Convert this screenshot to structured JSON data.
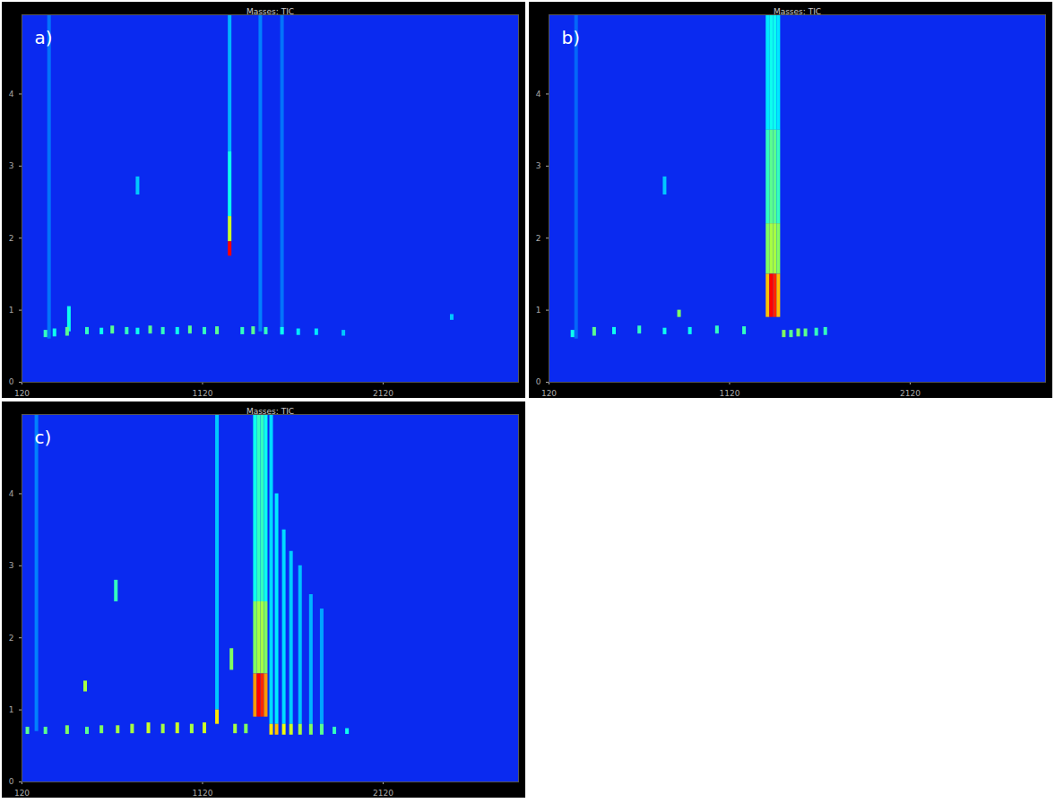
{
  "chart_data": [
    {
      "type": "heatmap",
      "title": "Masses: TIC",
      "panel_label": "a)",
      "xlim": [
        120,
        2870
      ],
      "xticks": [
        120,
        1120,
        2120
      ],
      "ylim": [
        0,
        5.1
      ],
      "yticks": [
        0,
        1,
        2,
        3,
        4
      ],
      "zlim": [
        0,
        1
      ],
      "peaks": [
        {
          "x": 270,
          "y0": 0.6,
          "y1": 5.1,
          "intensity": 0.12
        },
        {
          "x": 1440,
          "y0": 0.7,
          "y1": 5.1,
          "intensity": 0.14
        },
        {
          "x": 1560,
          "y0": 0.65,
          "y1": 5.1,
          "intensity": 0.12
        },
        {
          "x": 1270,
          "y0": 3.2,
          "y1": 5.1,
          "intensity": 0.22
        },
        {
          "x": 1270,
          "y0": 2.3,
          "y1": 3.2,
          "intensity": 0.35
        },
        {
          "x": 1270,
          "y0": 1.95,
          "y1": 2.3,
          "intensity": 0.6
        },
        {
          "x": 1270,
          "y0": 1.75,
          "y1": 1.95,
          "intensity": 1.0
        },
        {
          "x": 760,
          "y0": 2.6,
          "y1": 2.85,
          "intensity": 0.25
        },
        {
          "x": 380,
          "y0": 0.7,
          "y1": 1.05,
          "intensity": 0.35
        },
        {
          "x": 250,
          "y0": 0.62,
          "y1": 0.72,
          "intensity": 0.4
        },
        {
          "x": 300,
          "y0": 0.63,
          "y1": 0.74,
          "intensity": 0.35
        },
        {
          "x": 370,
          "y0": 0.64,
          "y1": 0.76,
          "intensity": 0.45
        },
        {
          "x": 480,
          "y0": 0.66,
          "y1": 0.76,
          "intensity": 0.4
        },
        {
          "x": 560,
          "y0": 0.66,
          "y1": 0.75,
          "intensity": 0.35
        },
        {
          "x": 620,
          "y0": 0.67,
          "y1": 0.78,
          "intensity": 0.45
        },
        {
          "x": 700,
          "y0": 0.66,
          "y1": 0.76,
          "intensity": 0.4
        },
        {
          "x": 760,
          "y0": 0.66,
          "y1": 0.75,
          "intensity": 0.35
        },
        {
          "x": 830,
          "y0": 0.67,
          "y1": 0.78,
          "intensity": 0.45
        },
        {
          "x": 900,
          "y0": 0.66,
          "y1": 0.76,
          "intensity": 0.4
        },
        {
          "x": 980,
          "y0": 0.66,
          "y1": 0.76,
          "intensity": 0.35
        },
        {
          "x": 1050,
          "y0": 0.67,
          "y1": 0.78,
          "intensity": 0.45
        },
        {
          "x": 1130,
          "y0": 0.66,
          "y1": 0.76,
          "intensity": 0.4
        },
        {
          "x": 1200,
          "y0": 0.66,
          "y1": 0.77,
          "intensity": 0.45
        },
        {
          "x": 1340,
          "y0": 0.66,
          "y1": 0.76,
          "intensity": 0.4
        },
        {
          "x": 1400,
          "y0": 0.66,
          "y1": 0.77,
          "intensity": 0.45
        },
        {
          "x": 1470,
          "y0": 0.66,
          "y1": 0.76,
          "intensity": 0.4
        },
        {
          "x": 1560,
          "y0": 0.66,
          "y1": 0.76,
          "intensity": 0.35
        },
        {
          "x": 1650,
          "y0": 0.65,
          "y1": 0.74,
          "intensity": 0.3
        },
        {
          "x": 1750,
          "y0": 0.65,
          "y1": 0.74,
          "intensity": 0.3
        },
        {
          "x": 1900,
          "y0": 0.64,
          "y1": 0.72,
          "intensity": 0.25
        },
        {
          "x": 2500,
          "y0": 0.86,
          "y1": 0.94,
          "intensity": 0.25
        }
      ]
    },
    {
      "type": "heatmap",
      "title": "Masses: TIC",
      "panel_label": "b)",
      "xlim": [
        120,
        2870
      ],
      "xticks": [
        120,
        1120,
        2120
      ],
      "ylim": [
        0,
        5.1
      ],
      "yticks": [
        0,
        1,
        2,
        3,
        4
      ],
      "zlim": [
        0,
        1
      ],
      "peaks": [
        {
          "x": 270,
          "y0": 0.6,
          "y1": 5.1,
          "intensity": 0.1
        },
        {
          "x": 1330,
          "y0": 3.5,
          "y1": 5.1,
          "intensity": 0.3
        },
        {
          "x": 1350,
          "y0": 3.5,
          "y1": 5.1,
          "intensity": 0.35
        },
        {
          "x": 1370,
          "y0": 3.5,
          "y1": 5.1,
          "intensity": 0.35
        },
        {
          "x": 1390,
          "y0": 3.5,
          "y1": 5.1,
          "intensity": 0.3
        },
        {
          "x": 1330,
          "y0": 2.2,
          "y1": 3.5,
          "intensity": 0.4
        },
        {
          "x": 1350,
          "y0": 2.2,
          "y1": 3.5,
          "intensity": 0.45
        },
        {
          "x": 1370,
          "y0": 2.2,
          "y1": 3.5,
          "intensity": 0.45
        },
        {
          "x": 1390,
          "y0": 2.2,
          "y1": 3.5,
          "intensity": 0.4
        },
        {
          "x": 1330,
          "y0": 1.5,
          "y1": 2.2,
          "intensity": 0.5
        },
        {
          "x": 1350,
          "y0": 1.5,
          "y1": 2.2,
          "intensity": 0.55
        },
        {
          "x": 1370,
          "y0": 1.5,
          "y1": 2.2,
          "intensity": 0.55
        },
        {
          "x": 1390,
          "y0": 1.5,
          "y1": 2.2,
          "intensity": 0.5
        },
        {
          "x": 1330,
          "y0": 0.9,
          "y1": 1.5,
          "intensity": 0.75
        },
        {
          "x": 1350,
          "y0": 0.9,
          "y1": 1.5,
          "intensity": 1.0
        },
        {
          "x": 1370,
          "y0": 0.9,
          "y1": 1.5,
          "intensity": 0.95
        },
        {
          "x": 1390,
          "y0": 0.9,
          "y1": 1.5,
          "intensity": 0.75
        },
        {
          "x": 1420,
          "y0": 0.62,
          "y1": 0.72,
          "intensity": 0.5
        },
        {
          "x": 1460,
          "y0": 0.62,
          "y1": 0.72,
          "intensity": 0.45
        },
        {
          "x": 1500,
          "y0": 0.63,
          "y1": 0.74,
          "intensity": 0.5
        },
        {
          "x": 1540,
          "y0": 0.63,
          "y1": 0.74,
          "intensity": 0.45
        },
        {
          "x": 1600,
          "y0": 0.64,
          "y1": 0.75,
          "intensity": 0.4
        },
        {
          "x": 1650,
          "y0": 0.65,
          "y1": 0.76,
          "intensity": 0.4
        },
        {
          "x": 840,
          "y0": 0.9,
          "y1": 1.0,
          "intensity": 0.5
        },
        {
          "x": 760,
          "y0": 2.6,
          "y1": 2.85,
          "intensity": 0.25
        },
        {
          "x": 250,
          "y0": 0.62,
          "y1": 0.72,
          "intensity": 0.35
        },
        {
          "x": 370,
          "y0": 0.64,
          "y1": 0.76,
          "intensity": 0.45
        },
        {
          "x": 480,
          "y0": 0.66,
          "y1": 0.76,
          "intensity": 0.35
        },
        {
          "x": 620,
          "y0": 0.67,
          "y1": 0.78,
          "intensity": 0.4
        },
        {
          "x": 760,
          "y0": 0.66,
          "y1": 0.75,
          "intensity": 0.35
        },
        {
          "x": 900,
          "y0": 0.66,
          "y1": 0.76,
          "intensity": 0.35
        },
        {
          "x": 1050,
          "y0": 0.67,
          "y1": 0.78,
          "intensity": 0.4
        },
        {
          "x": 1200,
          "y0": 0.66,
          "y1": 0.77,
          "intensity": 0.4
        }
      ]
    },
    {
      "type": "heatmap",
      "title": "Masses: TIC",
      "panel_label": "c)",
      "xlim": [
        120,
        2870
      ],
      "xticks": [
        120,
        1120,
        2120
      ],
      "ylim": [
        0,
        5.1
      ],
      "yticks": [
        0,
        1,
        2,
        3,
        4
      ],
      "zlim": [
        0,
        1
      ],
      "peaks": [
        {
          "x": 200,
          "y0": 0.7,
          "y1": 5.1,
          "intensity": 0.14
        },
        {
          "x": 1200,
          "y0": 1.0,
          "y1": 5.1,
          "intensity": 0.25
        },
        {
          "x": 1500,
          "y0": 0.8,
          "y1": 5.1,
          "intensity": 0.28
        },
        {
          "x": 1530,
          "y0": 0.8,
          "y1": 4.0,
          "intensity": 0.3
        },
        {
          "x": 1570,
          "y0": 0.8,
          "y1": 3.5,
          "intensity": 0.28
        },
        {
          "x": 1610,
          "y0": 0.8,
          "y1": 3.2,
          "intensity": 0.26
        },
        {
          "x": 1660,
          "y0": 0.8,
          "y1": 3.0,
          "intensity": 0.24
        },
        {
          "x": 1720,
          "y0": 0.8,
          "y1": 2.6,
          "intensity": 0.22
        },
        {
          "x": 1780,
          "y0": 0.8,
          "y1": 2.4,
          "intensity": 0.2
        },
        {
          "x": 1410,
          "y0": 2.5,
          "y1": 5.1,
          "intensity": 0.35
        },
        {
          "x": 1430,
          "y0": 2.5,
          "y1": 5.1,
          "intensity": 0.4
        },
        {
          "x": 1450,
          "y0": 2.5,
          "y1": 5.1,
          "intensity": 0.4
        },
        {
          "x": 1470,
          "y0": 2.5,
          "y1": 5.1,
          "intensity": 0.35
        },
        {
          "x": 1410,
          "y0": 1.5,
          "y1": 2.5,
          "intensity": 0.5
        },
        {
          "x": 1430,
          "y0": 1.5,
          "y1": 2.5,
          "intensity": 0.55
        },
        {
          "x": 1450,
          "y0": 1.5,
          "y1": 2.5,
          "intensity": 0.55
        },
        {
          "x": 1470,
          "y0": 1.5,
          "y1": 2.5,
          "intensity": 0.5
        },
        {
          "x": 1410,
          "y0": 0.9,
          "y1": 1.5,
          "intensity": 0.8
        },
        {
          "x": 1430,
          "y0": 0.9,
          "y1": 1.5,
          "intensity": 1.0
        },
        {
          "x": 1450,
          "y0": 0.9,
          "y1": 1.5,
          "intensity": 0.95
        },
        {
          "x": 1470,
          "y0": 0.9,
          "y1": 1.5,
          "intensity": 0.8
        },
        {
          "x": 1500,
          "y0": 0.65,
          "y1": 0.8,
          "intensity": 0.7
        },
        {
          "x": 1530,
          "y0": 0.65,
          "y1": 0.8,
          "intensity": 0.75
        },
        {
          "x": 1570,
          "y0": 0.65,
          "y1": 0.8,
          "intensity": 0.65
        },
        {
          "x": 1610,
          "y0": 0.65,
          "y1": 0.8,
          "intensity": 0.6
        },
        {
          "x": 1660,
          "y0": 0.65,
          "y1": 0.8,
          "intensity": 0.55
        },
        {
          "x": 1720,
          "y0": 0.65,
          "y1": 0.8,
          "intensity": 0.5
        },
        {
          "x": 1780,
          "y0": 0.65,
          "y1": 0.8,
          "intensity": 0.45
        },
        {
          "x": 1200,
          "y0": 0.8,
          "y1": 1.0,
          "intensity": 0.7
        },
        {
          "x": 1280,
          "y0": 1.55,
          "y1": 1.85,
          "intensity": 0.5
        },
        {
          "x": 470,
          "y0": 1.25,
          "y1": 1.4,
          "intensity": 0.55
        },
        {
          "x": 640,
          "y0": 2.5,
          "y1": 2.8,
          "intensity": 0.4
        },
        {
          "x": 150,
          "y0": 0.66,
          "y1": 0.76,
          "intensity": 0.45
        },
        {
          "x": 250,
          "y0": 0.66,
          "y1": 0.76,
          "intensity": 0.45
        },
        {
          "x": 370,
          "y0": 0.66,
          "y1": 0.78,
          "intensity": 0.5
        },
        {
          "x": 480,
          "y0": 0.66,
          "y1": 0.76,
          "intensity": 0.45
        },
        {
          "x": 560,
          "y0": 0.67,
          "y1": 0.78,
          "intensity": 0.5
        },
        {
          "x": 650,
          "y0": 0.67,
          "y1": 0.78,
          "intensity": 0.55
        },
        {
          "x": 730,
          "y0": 0.67,
          "y1": 0.8,
          "intensity": 0.55
        },
        {
          "x": 820,
          "y0": 0.67,
          "y1": 0.82,
          "intensity": 0.6
        },
        {
          "x": 900,
          "y0": 0.67,
          "y1": 0.8,
          "intensity": 0.55
        },
        {
          "x": 980,
          "y0": 0.67,
          "y1": 0.82,
          "intensity": 0.6
        },
        {
          "x": 1060,
          "y0": 0.67,
          "y1": 0.8,
          "intensity": 0.55
        },
        {
          "x": 1130,
          "y0": 0.67,
          "y1": 0.82,
          "intensity": 0.6
        },
        {
          "x": 1300,
          "y0": 0.67,
          "y1": 0.8,
          "intensity": 0.55
        },
        {
          "x": 1360,
          "y0": 0.67,
          "y1": 0.8,
          "intensity": 0.5
        },
        {
          "x": 1850,
          "y0": 0.66,
          "y1": 0.76,
          "intensity": 0.4
        },
        {
          "x": 1920,
          "y0": 0.66,
          "y1": 0.74,
          "intensity": 0.35
        }
      ]
    }
  ]
}
